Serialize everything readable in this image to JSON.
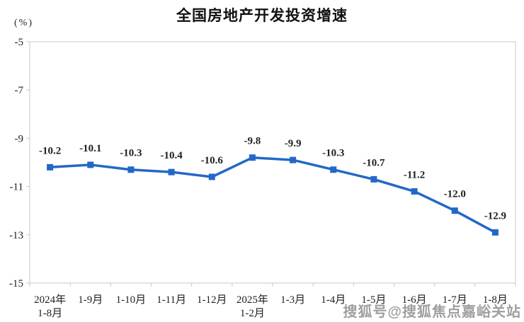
{
  "page": {
    "title": "全国房地产开发投资增速",
    "unit_label": "(%)",
    "watermark": "搜狐号@搜狐焦点嘉峪关站"
  },
  "chart_data": {
    "type": "line",
    "title": "全国房地产开发投资增速",
    "ylabel": "(%)",
    "categories": [
      "2024年\n1-8月",
      "1-9月",
      "1-10月",
      "1-11月",
      "1-12月",
      "2025年\n1-2月",
      "1-3月",
      "1-4月",
      "1-5月",
      "1-6月",
      "1-7月",
      "1-8月"
    ],
    "values": [
      -10.2,
      -10.1,
      -10.3,
      -10.4,
      -10.6,
      -9.8,
      -9.9,
      -10.3,
      -10.7,
      -11.2,
      -12.0,
      -12.9
    ],
    "data_labels": [
      "-10.2",
      "-10.1",
      "-10.3",
      "-10.4",
      "-10.6",
      "-9.8",
      "-9.9",
      "-10.3",
      "-10.7",
      "-11.2",
      "-12.0",
      "-12.9"
    ],
    "ylim": [
      -15,
      -5
    ],
    "y_ticks": [
      -5,
      -7,
      -9,
      -11,
      -13,
      -15
    ],
    "grid": false,
    "legend": "none",
    "line_color": "#2368C6",
    "marker": "square",
    "axis_color": "#C9C9C9",
    "label_color": "#1f1f1f"
  }
}
